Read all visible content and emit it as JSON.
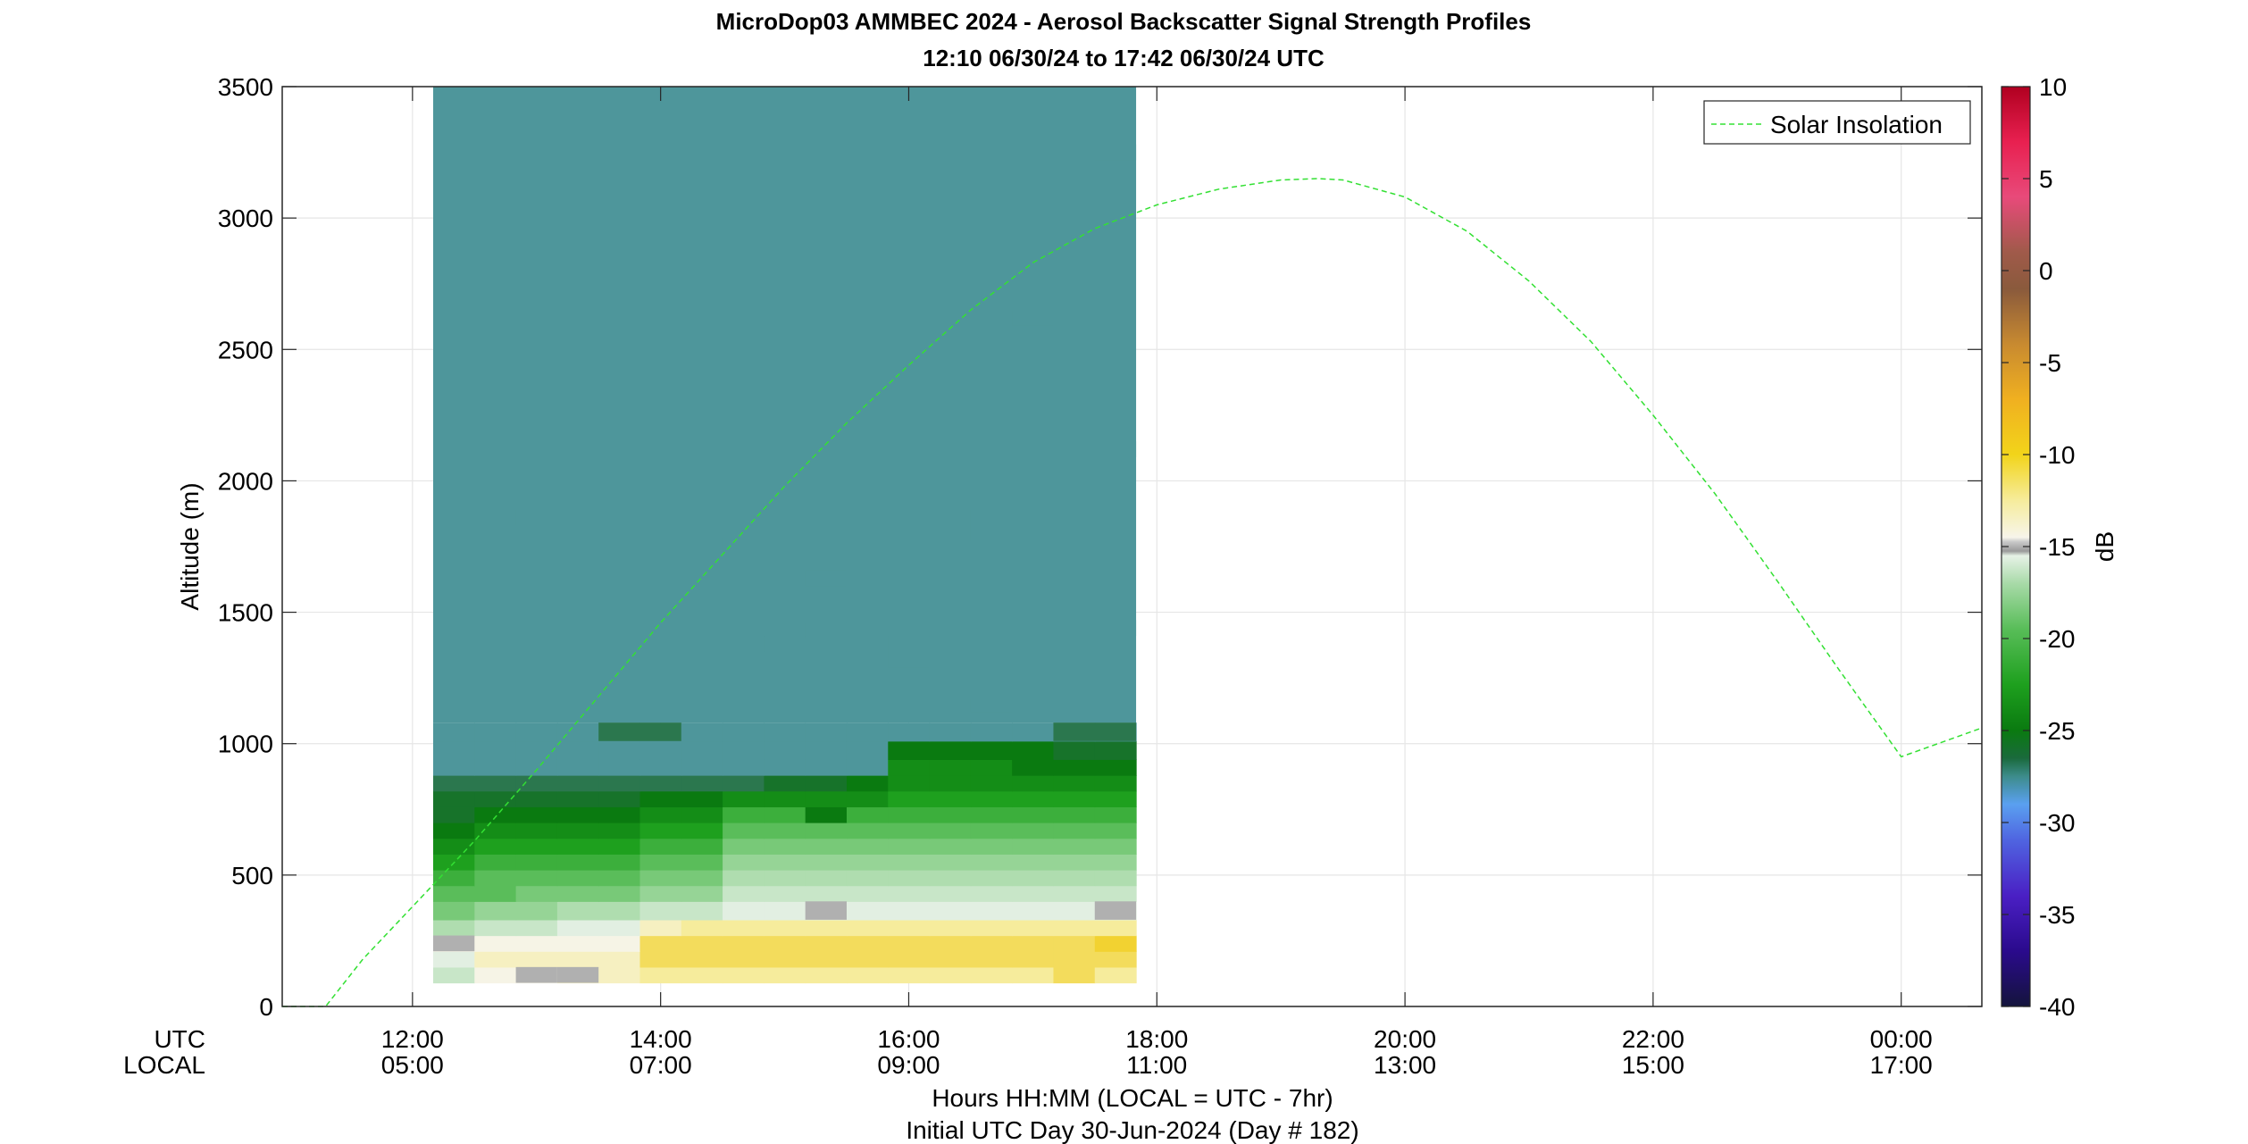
{
  "chart_data": {
    "type": "heatmap",
    "title": "MicroDop03 AMMBEC 2024 - Aerosol Backscatter Signal Strength Profiles",
    "subtitle": "12:10 06/30/24 to 17:42 06/30/24  UTC",
    "ylabel": "Altitude (m)",
    "xlabel": "Hours HH:MM  (LOCAL = UTC - 7hr)",
    "xlabel2": "Initial UTC Day 30-Jun-2024 (Day # 182)",
    "row_utc_label": "UTC",
    "row_local_label": "LOCAL",
    "x_range_hours": [
      10.95,
      24.65
    ],
    "ylim": [
      0,
      3500
    ],
    "y_ticks": [
      0,
      500,
      1000,
      1500,
      2000,
      2500,
      3000,
      3500
    ],
    "y_tick_labels": [
      "0",
      "500",
      "1000",
      "1500",
      "2000",
      "2500",
      "3000",
      "3500"
    ],
    "x_ticks_hours": [
      12,
      14,
      16,
      18,
      20,
      22,
      24
    ],
    "x_tick_labels_utc": [
      "12:00",
      "14:00",
      "16:00",
      "18:00",
      "20:00",
      "22:00",
      "00:00"
    ],
    "x_tick_labels_local": [
      "05:00",
      "07:00",
      "09:00",
      "11:00",
      "13:00",
      "15:00",
      "17:00"
    ],
    "grid": true,
    "colorbar": {
      "label": "dB",
      "range": [
        -40,
        10
      ],
      "ticks": [
        10,
        5,
        0,
        -5,
        -10,
        -15,
        -20,
        -25,
        -30,
        -35,
        -40
      ],
      "tick_labels": [
        "10",
        "5",
        "0",
        "-5",
        "-10",
        "-15",
        "-20",
        "-25",
        "-30",
        "-35",
        "-40"
      ]
    },
    "heatmap": {
      "time_start_hours": 12.1667,
      "time_bin_hours": 0.3333,
      "time_bins": 17,
      "alt_start_m": 90,
      "alt_bin_m": 60,
      "background_db": -28,
      "layers": [
        {
          "alt": [
            90,
            150
          ],
          "db": [
            -17,
            -15,
            -15,
            -14,
            -14,
            -13,
            -13,
            -13,
            -13,
            -13,
            -13,
            -13,
            -13,
            -13,
            -13,
            -12,
            -13
          ]
        },
        {
          "alt": [
            150,
            210
          ],
          "db": [
            -16,
            -14,
            -14,
            -14,
            -14,
            -12,
            -12,
            -12,
            -12,
            -12,
            -12,
            -12,
            -12,
            -12,
            -12,
            -12,
            -12
          ]
        },
        {
          "alt": [
            210,
            270
          ],
          "db": [
            -15,
            -15,
            -15,
            -15,
            -15,
            -12,
            -12,
            -12,
            -12,
            -12,
            -12,
            -12,
            -12,
            -12,
            -12,
            -12,
            -11
          ]
        },
        {
          "alt": [
            270,
            330
          ],
          "db": [
            -18,
            -17,
            -17,
            -16,
            -16,
            -14,
            -13,
            -13,
            -13,
            -13,
            -13,
            -13,
            -13,
            -13,
            -13,
            -13,
            -13
          ]
        },
        {
          "alt": [
            330,
            400
          ],
          "db": [
            -20,
            -19,
            -19,
            -18,
            -18,
            -17,
            -17,
            -16,
            -16,
            -16,
            -16,
            -16,
            -16,
            -16,
            -16,
            -16,
            -16
          ]
        },
        {
          "alt": [
            400,
            460
          ],
          "db": [
            -21,
            -21,
            -20,
            -20,
            -20,
            -19,
            -19,
            -17,
            -17,
            -17,
            -17,
            -17,
            -17,
            -17,
            -17,
            -17,
            -17
          ]
        },
        {
          "alt": [
            460,
            520
          ],
          "db": [
            -22,
            -21,
            -21,
            -21,
            -21,
            -20,
            -20,
            -18,
            -18,
            -18,
            -18,
            -18,
            -18,
            -18,
            -18,
            -18,
            -18
          ]
        },
        {
          "alt": [
            520,
            580
          ],
          "db": [
            -23,
            -22,
            -22,
            -22,
            -22,
            -21,
            -21,
            -19,
            -19,
            -19,
            -19,
            -19,
            -19,
            -19,
            -19,
            -19,
            -19
          ]
        },
        {
          "alt": [
            580,
            640
          ],
          "db": [
            -24,
            -23,
            -23,
            -23,
            -23,
            -22,
            -22,
            -20,
            -20,
            -20,
            -20,
            -20,
            -20,
            -20,
            -20,
            -20,
            -20
          ]
        },
        {
          "alt": [
            640,
            700
          ],
          "db": [
            -25,
            -24,
            -24,
            -24,
            -24,
            -23,
            -23,
            -21,
            -21,
            -21,
            -21,
            -21,
            -21,
            -21,
            -21,
            -21,
            -21
          ]
        },
        {
          "alt": [
            700,
            760
          ],
          "db": [
            -26,
            -25,
            -25,
            -25,
            -25,
            -24,
            -24,
            -22,
            -22,
            -25,
            -22,
            -22,
            -22,
            -22,
            -22,
            -22,
            -22
          ]
        },
        {
          "alt": [
            760,
            820
          ],
          "db": [
            -26,
            -26,
            -26,
            -26,
            -26,
            -25,
            -25,
            -24,
            -24,
            -24,
            -24,
            -23,
            -23,
            -23,
            -23,
            -23,
            -23
          ]
        },
        {
          "alt": [
            820,
            880
          ],
          "db": [
            -27,
            -27,
            -27,
            -27,
            -27,
            -27,
            -27,
            -27,
            -26,
            -26,
            -25,
            -24,
            -24,
            -24,
            -24,
            -24,
            -24
          ]
        },
        {
          "alt": [
            880,
            940
          ],
          "db": [
            -28,
            -28,
            -28,
            -28,
            -28,
            -28,
            -28,
            -28,
            -28,
            -28,
            -28,
            -24,
            -24,
            -24,
            -25,
            -25,
            -25
          ]
        },
        {
          "alt": [
            940,
            1010
          ],
          "db": [
            -28,
            -28,
            -28,
            -28,
            -28,
            -28,
            -28,
            -28,
            -28,
            -28,
            -28,
            -25,
            -25,
            -25,
            -25,
            -26,
            -26
          ]
        },
        {
          "alt": [
            1010,
            1080
          ],
          "db": [
            -28,
            -28,
            -28,
            -28,
            -28,
            -28,
            -28,
            -28,
            -28,
            -28,
            -28,
            -28,
            -28,
            -28,
            -28,
            -28,
            -28
          ]
        }
      ],
      "gray_cells": [
        {
          "t": 0,
          "alt": [
            210,
            270
          ]
        },
        {
          "t": 2,
          "alt": [
            90,
            150
          ]
        },
        {
          "t": 3,
          "alt": [
            90,
            150
          ]
        },
        {
          "t": 9,
          "alt": [
            330,
            400
          ]
        },
        {
          "t": 16,
          "alt": [
            330,
            400
          ]
        }
      ],
      "patches": [
        {
          "t": [
            0,
            1
          ],
          "alt": [
            1350,
            1410
          ],
          "db": -29
        },
        {
          "t": [
            0,
            1
          ],
          "alt": [
            1110,
            1170
          ],
          "db": -29
        },
        {
          "t": [
            2,
            3
          ],
          "alt": [
            1830,
            1890
          ],
          "db": -29
        },
        {
          "t": [
            7,
            8
          ],
          "alt": [
            1720,
            1780
          ],
          "db": -29
        },
        {
          "t": [
            8,
            10
          ],
          "alt": [
            1350,
            1410
          ],
          "db": -29
        },
        {
          "t": [
            9,
            10
          ],
          "alt": [
            1400,
            1460
          ],
          "db": -29
        },
        {
          "t": [
            9,
            10
          ],
          "alt": [
            1600,
            1660
          ],
          "db": -29
        },
        {
          "t": [
            11,
            12
          ],
          "alt": [
            1290,
            1410
          ],
          "db": -29
        },
        {
          "t": [
            13,
            14
          ],
          "alt": [
            1770,
            1890
          ],
          "db": -29
        },
        {
          "t": [
            13,
            14
          ],
          "alt": [
            1120,
            1170
          ],
          "db": -29
        },
        {
          "t": [
            14,
            15
          ],
          "alt": [
            2590,
            2650
          ],
          "db": -29
        },
        {
          "t": [
            16,
            17
          ],
          "alt": [
            2090,
            2150
          ],
          "db": -29
        },
        {
          "t": [
            16,
            17
          ],
          "alt": [
            3220,
            3280
          ],
          "db": -29
        },
        {
          "t": [
            16,
            17
          ],
          "alt": [
            1410,
            1470
          ],
          "db": -29
        },
        {
          "t": [
            4,
            6
          ],
          "alt": [
            1010,
            1080
          ],
          "db": -27
        },
        {
          "t": [
            15,
            17
          ],
          "alt": [
            1010,
            1080
          ],
          "db": -27
        }
      ],
      "top_alt_m": 3500
    },
    "series": [
      {
        "name": "Solar Insolation",
        "style": "dashed",
        "color": "#33e033",
        "x_hours": [
          10.95,
          11.3,
          11.6,
          11.9,
          12.5,
          13.0,
          13.5,
          14.0,
          14.5,
          15.0,
          15.5,
          16.0,
          16.5,
          17.0,
          17.5,
          18.0,
          18.5,
          19.0,
          19.3,
          19.5,
          20.0,
          20.5,
          21.0,
          21.5,
          22.0,
          22.5,
          23.0,
          23.5,
          24.0,
          24.65
        ],
        "y": [
          0,
          0,
          180,
          330,
          630,
          900,
          1180,
          1460,
          1720,
          1980,
          2220,
          2440,
          2650,
          2830,
          2960,
          3050,
          3110,
          3145,
          3150,
          3145,
          3080,
          2950,
          2760,
          2530,
          2250,
          1950,
          1620,
          1280,
          950,
          1060
        ]
      }
    ],
    "legend": {
      "entries": [
        "Solar Insolation"
      ],
      "placement": "top-right"
    }
  }
}
